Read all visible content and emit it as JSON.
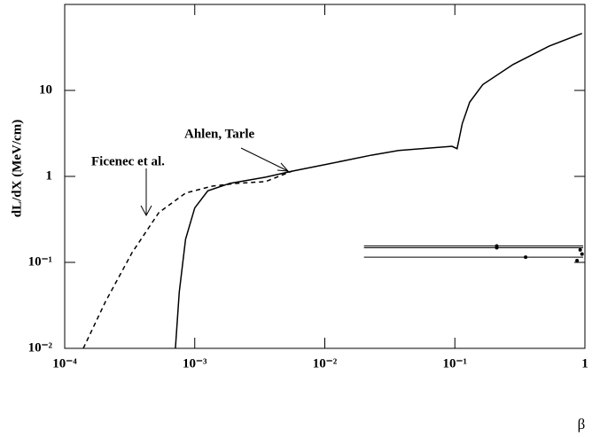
{
  "chart_data": {
    "type": "line",
    "xlabel": "β",
    "ylabel": "dL/dX  (MeV/cm)",
    "xscale": "log",
    "yscale": "log",
    "xlim": [
      0.0001,
      1
    ],
    "ylim": [
      0.01,
      100
    ],
    "xticks": [
      {
        "value": 0.0001,
        "label": "10⁻⁴"
      },
      {
        "value": 0.001,
        "label": "10⁻³"
      },
      {
        "value": 0.01,
        "label": "10⁻²"
      },
      {
        "value": 0.1,
        "label": "10⁻¹"
      },
      1
    ],
    "yticks": [
      {
        "value": 0.01,
        "label": "10⁻²"
      },
      {
        "value": 0.1,
        "label": "10⁻¹"
      },
      1,
      10
    ],
    "series": [
      {
        "name": "Ahlen, Tarle",
        "color": "#000000",
        "dashed": false,
        "x": [
          0.00071,
          0.00076,
          0.00085,
          0.001,
          0.00126,
          0.00186,
          0.0035,
          0.0056,
          0.0105,
          0.023,
          0.037,
          0.095,
          0.104,
          0.114,
          0.13,
          0.164,
          0.28,
          0.53,
          0.95
        ],
        "values": [
          0.01,
          0.045,
          0.186,
          0.43,
          0.68,
          0.83,
          0.98,
          1.15,
          1.39,
          1.77,
          2.0,
          2.24,
          2.1,
          4.1,
          7.3,
          11.7,
          20,
          32.7,
          46
        ]
      },
      {
        "name": "Ficenec et al.",
        "color": "#000000",
        "dashed": true,
        "x": [
          0.000139,
          0.000206,
          0.00033,
          0.00053,
          0.00085,
          0.00136,
          0.0021,
          0.0035,
          0.0056
        ],
        "values": [
          0.01,
          0.035,
          0.13,
          0.38,
          0.64,
          0.77,
          0.83,
          0.87,
          1.15
        ]
      }
    ],
    "points": {
      "color": "#000000",
      "x": [
        0.21,
        0.21,
        0.35,
        0.87,
        0.92,
        0.95
      ],
      "values": [
        0.155,
        0.148,
        0.115,
        0.105,
        0.14,
        0.125
      ],
      "xmin": [
        0.02,
        0.02,
        0.02,
        0.87,
        0.92,
        0.95
      ],
      "xmax": [
        0.97,
        0.97,
        0.97,
        0.87,
        0.92,
        0.95
      ]
    }
  }
}
